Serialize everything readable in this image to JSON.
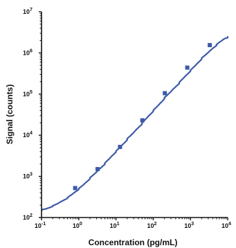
{
  "chart_data": {
    "type": "scatter",
    "xlabel": "Concentration (pg/mL)",
    "ylabel": "Signal (counts)",
    "xscale": "log",
    "yscale": "log",
    "xlim": [
      0.1,
      10000
    ],
    "ylim": [
      100,
      10000000
    ],
    "grid": false,
    "x_ticks": [
      {
        "base": "10",
        "exp": "-1"
      },
      {
        "base": "10",
        "exp": "0"
      },
      {
        "base": "10",
        "exp": "1"
      },
      {
        "base": "10",
        "exp": "2"
      },
      {
        "base": "10",
        "exp": "3"
      },
      {
        "base": "10",
        "exp": "4"
      }
    ],
    "y_ticks": [
      {
        "base": "10",
        "exp": "2"
      },
      {
        "base": "10",
        "exp": "3"
      },
      {
        "base": "10",
        "exp": "4"
      },
      {
        "base": "10",
        "exp": "5"
      },
      {
        "base": "10",
        "exp": "6"
      },
      {
        "base": "10",
        "exp": "7"
      }
    ],
    "points": [
      {
        "x": 0.8,
        "y": 520
      },
      {
        "x": 3.2,
        "y": 1500
      },
      {
        "x": 12.8,
        "y": 5200
      },
      {
        "x": 51,
        "y": 23000
      },
      {
        "x": 205,
        "y": 105000
      },
      {
        "x": 820,
        "y": 440000
      },
      {
        "x": 3300,
        "y": 1550000
      }
    ],
    "fit_curve": {
      "x": [
        0.1,
        0.2,
        0.5,
        1,
        2,
        5,
        10,
        20,
        50,
        100,
        200,
        500,
        1000,
        2000,
        5000,
        10000
      ],
      "y": [
        148,
        186,
        300,
        490,
        880,
        2050,
        4000,
        7800,
        19500,
        39000,
        78000,
        190000,
        370000,
        720000,
        1600000,
        2550000
      ]
    },
    "colors": {
      "marker": "#3d5aa8",
      "line": "#3d5aa8",
      "axis": "#111111"
    }
  }
}
